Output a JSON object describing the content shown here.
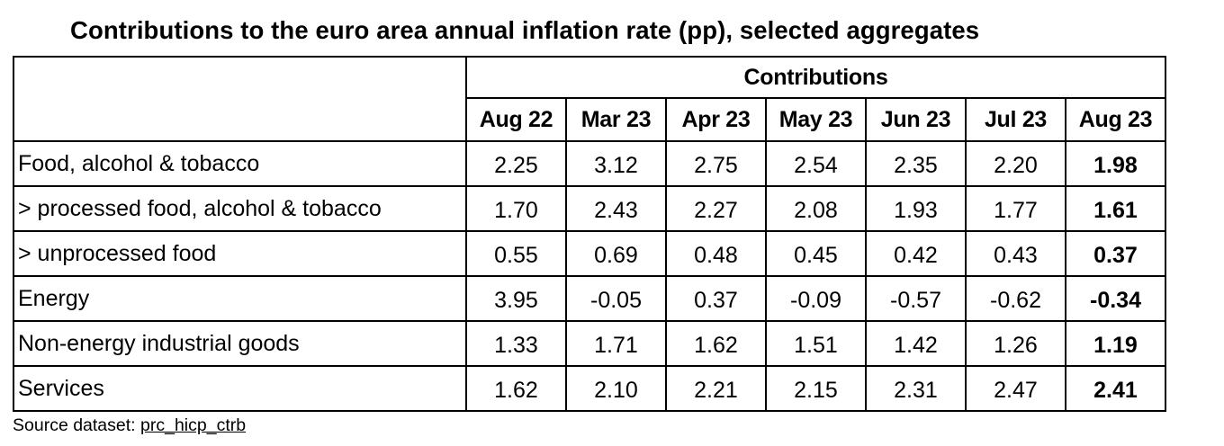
{
  "title": "Contributions to the euro area annual inflation rate (pp), selected aggregates",
  "header_group": "Contributions",
  "months": [
    "Aug 22",
    "Mar 23",
    "Apr 23",
    "May 23",
    "Jun 23",
    "Jul 23",
    "Aug 23"
  ],
  "rows": [
    {
      "label": "Food, alcohol & tobacco",
      "values": [
        "2.25",
        "3.12",
        "2.75",
        "2.54",
        "2.35",
        "2.20",
        "1.98"
      ]
    },
    {
      "label": "> processed food, alcohol & tobacco",
      "values": [
        "1.70",
        "2.43",
        "2.27",
        "2.08",
        "1.93",
        "1.77",
        "1.61"
      ]
    },
    {
      "label": "> unprocessed food",
      "values": [
        "0.55",
        "0.69",
        "0.48",
        "0.45",
        "0.42",
        "0.43",
        "0.37"
      ]
    },
    {
      "label": "Energy",
      "values": [
        "3.95",
        "-0.05",
        "0.37",
        "-0.09",
        "-0.57",
        "-0.62",
        "-0.34"
      ]
    },
    {
      "label": "Non-energy industrial goods",
      "values": [
        "1.33",
        "1.71",
        "1.62",
        "1.51",
        "1.42",
        "1.26",
        "1.19"
      ]
    },
    {
      "label": "Services",
      "values": [
        "1.62",
        "2.10",
        "2.21",
        "2.15",
        "2.31",
        "2.47",
        "2.41"
      ]
    }
  ],
  "source": {
    "prefix": "Source dataset: ",
    "dataset": "prc_hicp_ctrb"
  }
}
